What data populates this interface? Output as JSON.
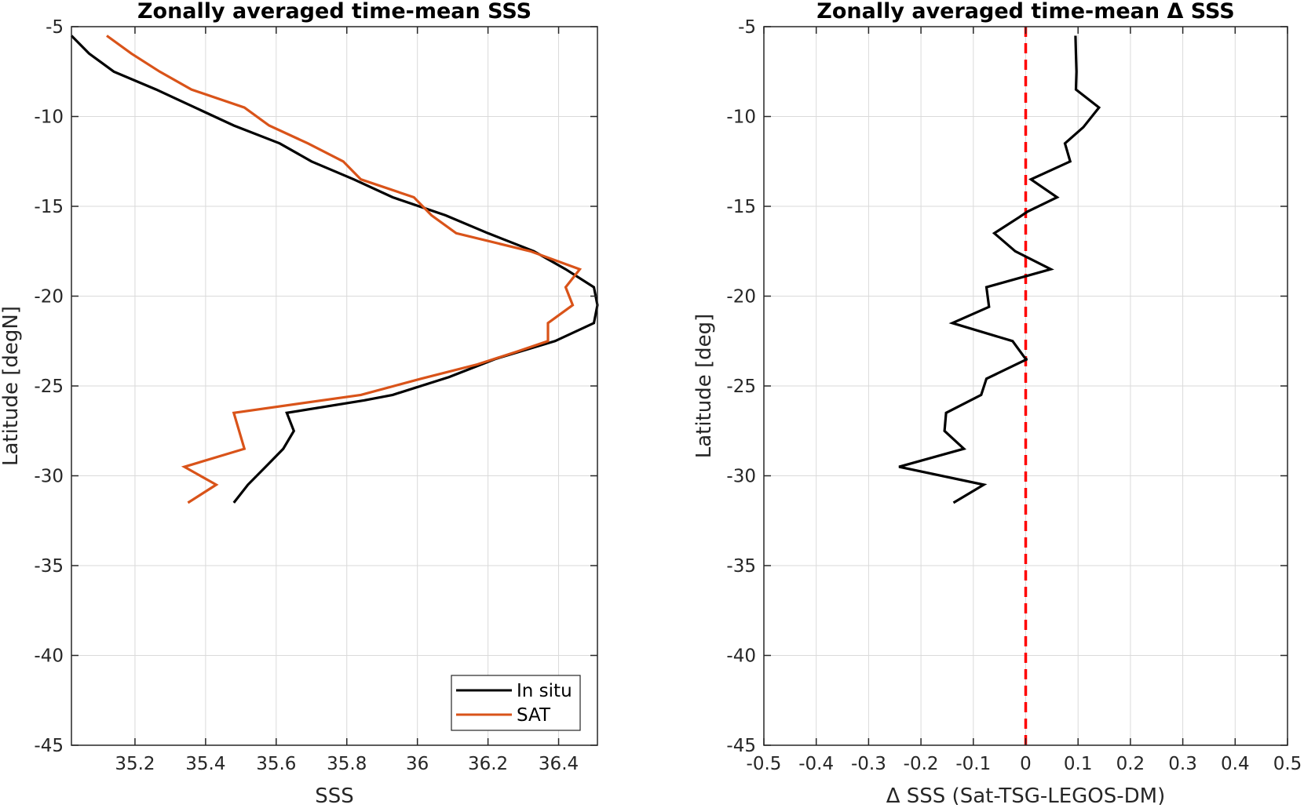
{
  "colors": {
    "insitu": "#000000",
    "sat": "#D95319",
    "zero_line": "#FF0000",
    "grid": "#DADADA",
    "axes": "#262626"
  },
  "chart_data": [
    {
      "type": "line",
      "title": "Zonally averaged time-mean SSS",
      "xlabel": "SSS",
      "ylabel": "Latitude [degN]",
      "xlim": [
        35.02,
        36.51
      ],
      "ylim": [
        -45,
        -5
      ],
      "xticks": [
        35.2,
        35.4,
        35.6,
        35.8,
        36,
        36.2,
        36.4
      ],
      "xtick_labels": [
        "35.2",
        "35.4",
        "35.6",
        "35.8",
        "36",
        "36.2",
        "36.4"
      ],
      "yticks": [
        -45,
        -40,
        -35,
        -30,
        -25,
        -20,
        -15,
        -10,
        -5
      ],
      "ytick_labels": [
        "-45",
        "-40",
        "-35",
        "-30",
        "-25",
        "-20",
        "-15",
        "-10",
        "-5"
      ],
      "grid": true,
      "legend_position": "bottom-right",
      "series": [
        {
          "name": "In situ",
          "color": "#000000",
          "points": [
            [
              35.02,
              -5.5
            ],
            [
              35.07,
              -6.5
            ],
            [
              35.14,
              -7.5
            ],
            [
              35.26,
              -8.5
            ],
            [
              35.37,
              -9.5
            ],
            [
              35.48,
              -10.5
            ],
            [
              35.61,
              -11.5
            ],
            [
              35.7,
              -12.5
            ],
            [
              35.82,
              -13.5
            ],
            [
              35.93,
              -14.5
            ],
            [
              36.08,
              -15.5
            ],
            [
              36.2,
              -16.5
            ],
            [
              36.33,
              -17.5
            ],
            [
              36.42,
              -18.5
            ],
            [
              36.5,
              -19.5
            ],
            [
              36.51,
              -20.5
            ],
            [
              36.5,
              -21.5
            ],
            [
              36.39,
              -22.5
            ],
            [
              36.22,
              -23.5
            ],
            [
              36.09,
              -24.5
            ],
            [
              35.93,
              -25.5
            ],
            [
              35.85,
              -25.8
            ],
            [
              35.63,
              -26.5
            ],
            [
              35.65,
              -27.5
            ],
            [
              35.62,
              -28.5
            ],
            [
              35.57,
              -29.5
            ],
            [
              35.52,
              -30.5
            ],
            [
              35.48,
              -31.5
            ]
          ]
        },
        {
          "name": "SAT",
          "color": "#D95319",
          "points": [
            [
              35.12,
              -5.5
            ],
            [
              35.19,
              -6.5
            ],
            [
              35.27,
              -7.5
            ],
            [
              35.36,
              -8.5
            ],
            [
              35.51,
              -9.5
            ],
            [
              35.58,
              -10.5
            ],
            [
              35.69,
              -11.5
            ],
            [
              35.79,
              -12.5
            ],
            [
              35.84,
              -13.5
            ],
            [
              35.99,
              -14.5
            ],
            [
              36.04,
              -15.5
            ],
            [
              36.11,
              -16.5
            ],
            [
              36.32,
              -17.5
            ],
            [
              36.46,
              -18.5
            ],
            [
              36.42,
              -19.5
            ],
            [
              36.44,
              -20.5
            ],
            [
              36.37,
              -21.5
            ],
            [
              36.37,
              -22.5
            ],
            [
              36.28,
              -23.1
            ],
            [
              36.17,
              -23.8
            ],
            [
              36.01,
              -24.6
            ],
            [
              35.84,
              -25.5
            ],
            [
              35.48,
              -26.5
            ],
            [
              35.51,
              -28.5
            ],
            [
              35.34,
              -29.5
            ],
            [
              35.43,
              -30.5
            ],
            [
              35.35,
              -31.5
            ]
          ]
        }
      ]
    },
    {
      "type": "line",
      "title": "Zonally averaged time-mean Δ SSS",
      "xlabel": "Δ SSS (Sat-TSG-LEGOS-DM)",
      "ylabel": "Latitude [deg]",
      "xlim": [
        -0.5,
        0.5
      ],
      "ylim": [
        -45,
        -5
      ],
      "xticks": [
        -0.5,
        -0.4,
        -0.3,
        -0.2,
        -0.1,
        0,
        0.1,
        0.2,
        0.3,
        0.4,
        0.5
      ],
      "xtick_labels": [
        "-0.5",
        "-0.4",
        "-0.3",
        "-0.2",
        "-0.1",
        "0",
        "0.1",
        "0.2",
        "0.3",
        "0.4",
        "0.5"
      ],
      "yticks": [
        -45,
        -40,
        -35,
        -30,
        -25,
        -20,
        -15,
        -10,
        -5
      ],
      "ytick_labels": [
        "-45",
        "-40",
        "-35",
        "-30",
        "-25",
        "-20",
        "-15",
        "-10",
        "-5"
      ],
      "grid": true,
      "reference_line": {
        "x": 0,
        "style": "dashed",
        "color": "#FF0000"
      },
      "series": [
        {
          "color": "#000000",
          "points": [
            [
              0.095,
              -5.5
            ],
            [
              0.096,
              -6.5
            ],
            [
              0.097,
              -7.5
            ],
            [
              0.096,
              -8.5
            ],
            [
              0.14,
              -9.5
            ],
            [
              0.11,
              -10.6
            ],
            [
              0.075,
              -11.5
            ],
            [
              0.085,
              -12.5
            ],
            [
              0.01,
              -13.5
            ],
            [
              0.06,
              -14.5
            ],
            [
              0.003,
              -15.3
            ],
            [
              -0.012,
              -15.6
            ],
            [
              -0.06,
              -16.5
            ],
            [
              -0.02,
              -17.5
            ],
            [
              0.048,
              -18.5
            ],
            [
              -0.075,
              -19.5
            ],
            [
              -0.07,
              -20.6
            ],
            [
              -0.14,
              -21.5
            ],
            [
              -0.025,
              -22.5
            ],
            [
              0.0,
              -23.5
            ],
            [
              0.003,
              -23.5
            ],
            [
              -0.075,
              -24.6
            ],
            [
              -0.085,
              -25.5
            ],
            [
              -0.152,
              -26.5
            ],
            [
              -0.155,
              -27.5
            ],
            [
              -0.118,
              -28.5
            ],
            [
              -0.242,
              -29.5
            ],
            [
              -0.08,
              -30.5
            ],
            [
              -0.138,
              -31.5
            ]
          ]
        }
      ]
    }
  ],
  "legend": {
    "items": [
      {
        "label": "In situ",
        "color": "#000000"
      },
      {
        "label": "SAT",
        "color": "#D95319"
      }
    ]
  }
}
